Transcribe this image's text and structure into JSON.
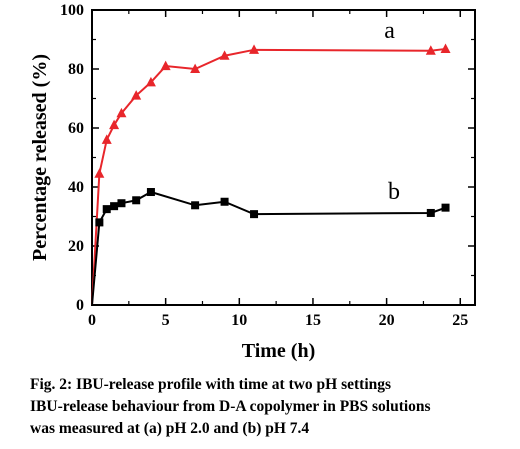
{
  "chart_data": {
    "type": "line",
    "xlabel": "Time (h)",
    "ylabel": "Percentage released (%)",
    "xlim": [
      0,
      26
    ],
    "ylim": [
      0,
      100
    ],
    "xticks": [
      "0",
      "5",
      "10",
      "15",
      "20",
      "25"
    ],
    "yticks": [
      "0",
      "20",
      "40",
      "60",
      "80",
      "100"
    ],
    "series": [
      {
        "name": "a",
        "color": "#e8262b",
        "marker": "triangle",
        "x": [
          0,
          0.5,
          1,
          1.5,
          2,
          3,
          4,
          5,
          7,
          9,
          11,
          23,
          24
        ],
        "y": [
          0,
          44.5,
          56,
          61,
          65,
          71,
          75.5,
          81,
          80,
          84.5,
          86.5,
          86.2,
          86.8
        ]
      },
      {
        "name": "b",
        "color": "#000000",
        "marker": "square",
        "x": [
          0,
          0.5,
          1,
          1.5,
          2,
          3,
          4,
          7,
          9,
          11,
          23,
          24
        ],
        "y": [
          0,
          28,
          32.5,
          33.5,
          34.5,
          35.5,
          38.3,
          33.8,
          35,
          30.8,
          31.2,
          33
        ]
      }
    ]
  },
  "caption": {
    "line1": "Fig. 2: IBU-release profile with time at two pH settings",
    "line2": "IBU-release behaviour from D-A copolymer in PBS solutions",
    "line3": "was measured at (a) pH 2.0 and (b) pH 7.4"
  }
}
